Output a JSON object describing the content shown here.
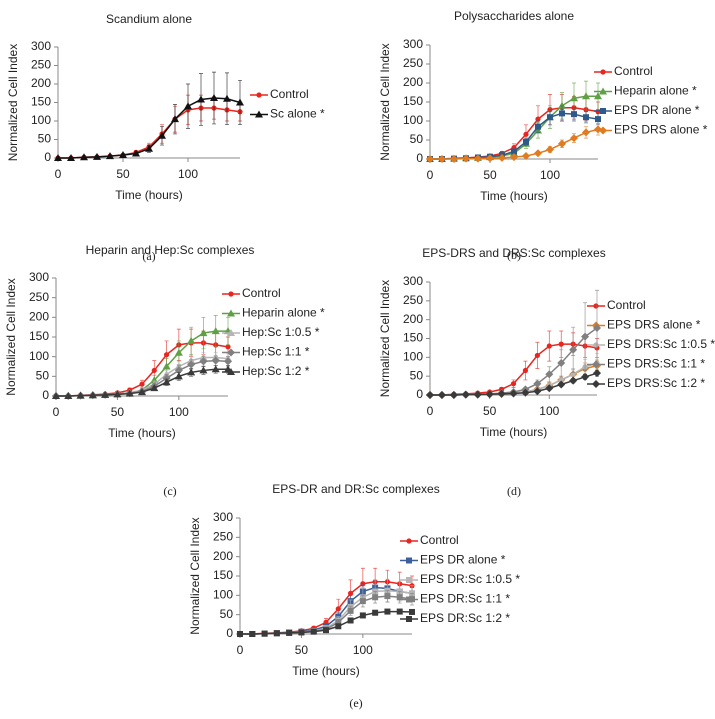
{
  "chart_data": [
    {
      "type": "line",
      "title": "Scandium alone",
      "caption": "(a)",
      "xlabel": "Time (hours)",
      "ylabel": "Normalized Cell Index",
      "xlim": [
        0,
        140
      ],
      "xticks": [
        0,
        50,
        100
      ],
      "ylim": [
        0,
        300
      ],
      "yticks": [
        0,
        50,
        100,
        150,
        200,
        250,
        300
      ],
      "x": [
        0,
        10,
        20,
        30,
        40,
        50,
        60,
        70,
        80,
        90,
        100,
        110,
        120,
        130,
        140
      ],
      "series": [
        {
          "name": "Control",
          "color": "#e8261f",
          "marker": "circle",
          "values": [
            0,
            0,
            2,
            3,
            5,
            8,
            15,
            30,
            65,
            105,
            130,
            135,
            135,
            130,
            125
          ],
          "errors": [
            0,
            0,
            0,
            0,
            1,
            2,
            5,
            10,
            25,
            35,
            40,
            35,
            30,
            30,
            25
          ]
        },
        {
          "name": "Sc alone *",
          "color": "#111111",
          "marker": "triangle",
          "values": [
            0,
            0,
            2,
            3,
            5,
            8,
            12,
            25,
            60,
            105,
            140,
            158,
            162,
            160,
            150
          ],
          "errors": [
            0,
            0,
            0,
            0,
            1,
            2,
            5,
            10,
            25,
            40,
            60,
            70,
            70,
            70,
            60
          ]
        }
      ]
    },
    {
      "type": "line",
      "title": "Polysaccharides alone",
      "caption": "(b)",
      "xlabel": "Time (hours)",
      "ylabel": "Normalized Cell Index",
      "xlim": [
        0,
        140
      ],
      "xticks": [
        0,
        50,
        100
      ],
      "ylim": [
        0,
        300
      ],
      "yticks": [
        0,
        50,
        100,
        150,
        200,
        250,
        300
      ],
      "x": [
        0,
        10,
        20,
        30,
        40,
        50,
        60,
        70,
        80,
        90,
        100,
        110,
        120,
        130,
        140
      ],
      "series": [
        {
          "name": "Control",
          "color": "#e8261f",
          "marker": "circle",
          "values": [
            0,
            0,
            2,
            3,
            5,
            8,
            15,
            30,
            65,
            105,
            130,
            135,
            135,
            130,
            125
          ],
          "errors": [
            0,
            0,
            0,
            0,
            1,
            2,
            5,
            10,
            25,
            35,
            40,
            35,
            30,
            30,
            25
          ]
        },
        {
          "name": "Heparin alone *",
          "color": "#5fa044",
          "marker": "triangle",
          "values": [
            0,
            0,
            1,
            2,
            3,
            5,
            8,
            15,
            40,
            75,
            110,
            140,
            160,
            165,
            165
          ],
          "errors": [
            0,
            0,
            0,
            0,
            1,
            2,
            3,
            6,
            12,
            20,
            30,
            35,
            40,
            40,
            35
          ]
        },
        {
          "name": "EPS DR alone *",
          "color": "#2e5a8a",
          "marker": "square",
          "values": [
            0,
            0,
            1,
            2,
            4,
            6,
            10,
            20,
            45,
            85,
            110,
            120,
            118,
            110,
            105
          ],
          "errors": [
            0,
            0,
            0,
            0,
            1,
            2,
            3,
            5,
            10,
            15,
            20,
            20,
            18,
            15,
            15
          ]
        },
        {
          "name": "EPS DRS alone *",
          "color": "#e07b1f",
          "marker": "diamond",
          "values": [
            0,
            0,
            0,
            1,
            1,
            2,
            3,
            5,
            8,
            15,
            25,
            40,
            55,
            70,
            78
          ],
          "errors": [
            0,
            0,
            0,
            0,
            0,
            1,
            1,
            2,
            3,
            5,
            8,
            10,
            12,
            15,
            15
          ]
        }
      ]
    },
    {
      "type": "line",
      "title": "Heparin and Hep:Sc complexes",
      "caption": "(c)",
      "xlabel": "Time (hours)",
      "ylabel": "Normalized Cell Index",
      "xlim": [
        0,
        140
      ],
      "xticks": [
        0,
        50,
        100
      ],
      "ylim": [
        0,
        300
      ],
      "yticks": [
        0,
        50,
        100,
        150,
        200,
        250,
        300
      ],
      "x": [
        0,
        10,
        20,
        30,
        40,
        50,
        60,
        70,
        80,
        90,
        100,
        110,
        120,
        130,
        140
      ],
      "series": [
        {
          "name": "Control",
          "color": "#e8261f",
          "marker": "circle",
          "values": [
            0,
            0,
            2,
            3,
            5,
            8,
            15,
            30,
            65,
            105,
            130,
            135,
            135,
            130,
            125
          ],
          "errors": [
            0,
            0,
            0,
            0,
            1,
            2,
            5,
            10,
            25,
            35,
            40,
            35,
            30,
            30,
            25
          ]
        },
        {
          "name": "Heparin alone *",
          "color": "#5fa044",
          "marker": "triangle",
          "values": [
            0,
            0,
            1,
            2,
            3,
            5,
            8,
            15,
            40,
            75,
            110,
            140,
            160,
            165,
            165
          ],
          "errors": [
            0,
            0,
            0,
            0,
            1,
            2,
            3,
            6,
            12,
            20,
            30,
            35,
            40,
            40,
            35
          ]
        },
        {
          "name": "Hep:Sc 1:0.5 *",
          "color": "#b5b5b5",
          "marker": "triangle",
          "values": [
            0,
            0,
            1,
            2,
            3,
            5,
            8,
            15,
            30,
            55,
            75,
            90,
            98,
            98,
            95
          ],
          "errors": [
            0,
            0,
            0,
            0,
            1,
            2,
            3,
            5,
            8,
            10,
            12,
            12,
            12,
            12,
            12
          ]
        },
        {
          "name": "Hep:Sc 1:1 *",
          "color": "#808080",
          "marker": "diamond",
          "values": [
            0,
            0,
            1,
            2,
            3,
            5,
            7,
            12,
            25,
            45,
            65,
            80,
            88,
            90,
            88
          ],
          "errors": [
            0,
            0,
            0,
            0,
            1,
            2,
            3,
            5,
            8,
            10,
            12,
            12,
            12,
            12,
            12
          ]
        },
        {
          "name": "Hep:Sc 1:2 *",
          "color": "#3a3a3a",
          "marker": "triangle",
          "values": [
            0,
            0,
            1,
            2,
            3,
            4,
            6,
            10,
            20,
            35,
            50,
            60,
            65,
            68,
            68
          ],
          "errors": [
            0,
            0,
            0,
            0,
            1,
            1,
            2,
            3,
            5,
            8,
            10,
            10,
            10,
            10,
            10
          ]
        }
      ]
    },
    {
      "type": "line",
      "title": "EPS-DRS and DRS:Sc complexes",
      "caption": "(d)",
      "xlabel": "Time (hours)",
      "ylabel": "Normalized Cell Index",
      "xlim": [
        0,
        140
      ],
      "xticks": [
        0,
        50,
        100
      ],
      "ylim": [
        0,
        300
      ],
      "yticks": [
        0,
        50,
        100,
        150,
        200,
        250,
        300
      ],
      "x": [
        0,
        10,
        20,
        30,
        40,
        50,
        60,
        70,
        80,
        90,
        100,
        110,
        120,
        130,
        140
      ],
      "series": [
        {
          "name": "Control",
          "color": "#e8261f",
          "marker": "circle",
          "values": [
            0,
            0,
            2,
            3,
            5,
            8,
            15,
            30,
            65,
            105,
            130,
            135,
            135,
            130,
            125
          ],
          "errors": [
            0,
            0,
            0,
            0,
            1,
            2,
            5,
            10,
            25,
            35,
            40,
            35,
            30,
            30,
            25
          ]
        },
        {
          "name": "EPS DRS alone *",
          "color": "#e07b1f",
          "marker": "diamond",
          "values": [
            0,
            0,
            0,
            1,
            1,
            2,
            3,
            5,
            8,
            15,
            25,
            40,
            55,
            70,
            78
          ],
          "errors": [
            0,
            0,
            0,
            0,
            0,
            1,
            1,
            2,
            3,
            5,
            8,
            10,
            12,
            15,
            15
          ]
        },
        {
          "name": "EPS DRS:Sc 1:0.5 *",
          "color": "#b5b5b5",
          "marker": "circle",
          "values": [
            0,
            0,
            0,
            1,
            1,
            2,
            3,
            5,
            8,
            15,
            25,
            40,
            55,
            75,
            85
          ],
          "errors": [
            0,
            0,
            0,
            0,
            0,
            1,
            1,
            2,
            3,
            5,
            8,
            10,
            15,
            20,
            25
          ]
        },
        {
          "name": "EPS DRS:Sc 1:1 *",
          "color": "#808080",
          "marker": "diamond",
          "values": [
            0,
            0,
            0,
            1,
            2,
            3,
            5,
            8,
            15,
            30,
            55,
            85,
            120,
            155,
            178
          ],
          "errors": [
            0,
            0,
            0,
            0,
            1,
            1,
            2,
            3,
            5,
            10,
            20,
            35,
            60,
            90,
            100
          ]
        },
        {
          "name": "EPS DRS:Sc 1:2 *",
          "color": "#3a3a3a",
          "marker": "diamond",
          "values": [
            0,
            0,
            0,
            1,
            1,
            2,
            3,
            4,
            6,
            10,
            18,
            28,
            38,
            48,
            58
          ],
          "errors": [
            0,
            0,
            0,
            0,
            0,
            1,
            1,
            1,
            2,
            3,
            4,
            5,
            6,
            7,
            8
          ]
        }
      ]
    },
    {
      "type": "line",
      "title": "EPS-DR and DR:Sc complexes",
      "caption": "(e)",
      "xlabel": "Time (hours)",
      "ylabel": "Normalized Cell Index",
      "xlim": [
        0,
        140
      ],
      "xticks": [
        0,
        50,
        100
      ],
      "ylim": [
        0,
        300
      ],
      "yticks": [
        0,
        50,
        100,
        150,
        200,
        250,
        300
      ],
      "x": [
        0,
        10,
        20,
        30,
        40,
        50,
        60,
        70,
        80,
        90,
        100,
        110,
        120,
        130,
        140
      ],
      "series": [
        {
          "name": "Control",
          "color": "#e8261f",
          "marker": "circle",
          "values": [
            0,
            0,
            2,
            3,
            5,
            8,
            15,
            30,
            65,
            105,
            130,
            135,
            135,
            130,
            125
          ],
          "errors": [
            0,
            0,
            0,
            0,
            1,
            2,
            5,
            10,
            25,
            35,
            40,
            35,
            30,
            30,
            25
          ]
        },
        {
          "name": "EPS DR alone *",
          "color": "#3a5f9a",
          "marker": "square",
          "values": [
            0,
            0,
            1,
            2,
            4,
            6,
            10,
            20,
            45,
            85,
            110,
            120,
            118,
            110,
            105
          ],
          "errors": [
            0,
            0,
            0,
            0,
            1,
            2,
            3,
            5,
            10,
            15,
            20,
            20,
            18,
            15,
            15
          ]
        },
        {
          "name": "EPS DR:Sc 1:0.5 *",
          "color": "#b5b5b5",
          "marker": "square",
          "values": [
            0,
            0,
            1,
            2,
            3,
            5,
            8,
            15,
            35,
            70,
            95,
            110,
            112,
            110,
            105
          ],
          "errors": [
            0,
            0,
            0,
            0,
            1,
            2,
            3,
            5,
            10,
            18,
            25,
            30,
            30,
            25,
            20
          ]
        },
        {
          "name": "EPS DR:Sc 1:1 *",
          "color": "#808080",
          "marker": "square",
          "values": [
            0,
            0,
            1,
            2,
            3,
            5,
            7,
            12,
            30,
            60,
            85,
            95,
            98,
            95,
            90
          ],
          "errors": [
            0,
            0,
            0,
            0,
            1,
            2,
            3,
            5,
            8,
            12,
            15,
            15,
            15,
            15,
            15
          ]
        },
        {
          "name": "EPS DR:Sc 1:2 *",
          "color": "#3a3a3a",
          "marker": "square",
          "values": [
            0,
            0,
            1,
            2,
            3,
            4,
            6,
            10,
            20,
            35,
            48,
            55,
            58,
            58,
            57
          ],
          "errors": [
            0,
            0,
            0,
            0,
            1,
            1,
            2,
            3,
            4,
            5,
            6,
            6,
            6,
            6,
            6
          ]
        }
      ]
    }
  ]
}
